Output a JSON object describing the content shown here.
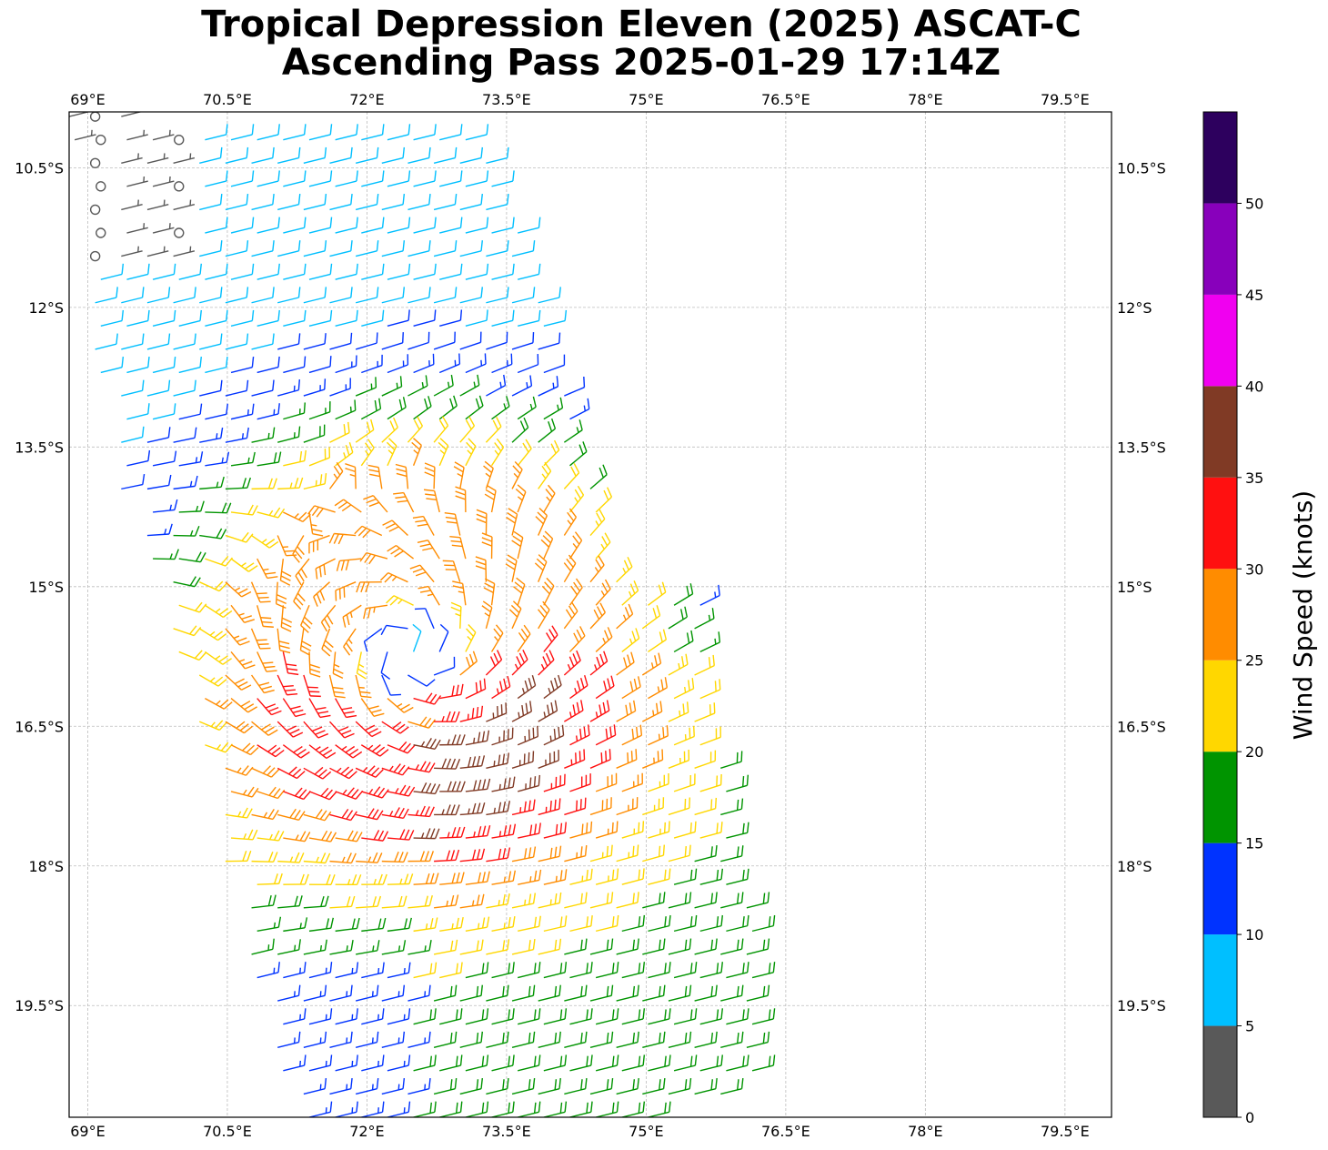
{
  "title": {
    "line1": "Tropical Depression Eleven (2025) ASCAT-C",
    "line2": "Ascending Pass 2025-01-29 17:14Z"
  },
  "chart_data": {
    "type": "wind_barb_map",
    "lon_range": [
      68.8,
      80.0
    ],
    "lat_range": [
      -9.9,
      -20.7
    ],
    "lon_ticks": [
      69,
      70.5,
      72,
      73.5,
      75,
      76.5,
      78,
      79.5
    ],
    "lon_tick_labels": [
      "69°E",
      "70.5°E",
      "72°E",
      "73.5°E",
      "75°E",
      "76.5°E",
      "78°E",
      "79.5°E"
    ],
    "lat_ticks": [
      -10.5,
      -12,
      -13.5,
      -15,
      -16.5,
      -18,
      -19.5
    ],
    "lat_tick_labels": [
      "10.5°S",
      "12°S",
      "13.5°S",
      "15°S",
      "16.5°S",
      "18°S",
      "19.5°S"
    ],
    "grid": true,
    "center": {
      "lon": 72.5,
      "lat": -15.7
    },
    "swath": {
      "top_lats": [
        -9.9,
        -10.5
      ],
      "corners": [
        [
          68.8,
          -9.9
        ],
        [
          73.3,
          -10.2
        ],
        [
          74.4,
          -13.5
        ],
        [
          74.8,
          -15.1
        ],
        [
          75.6,
          -15.2
        ],
        [
          76.4,
          -20.2
        ],
        [
          75.3,
          -20.7
        ],
        [
          71.2,
          -20.7
        ],
        [
          69.7,
          -15.0
        ],
        [
          69.2,
          -13.5
        ],
        [
          68.8,
          -10.2
        ]
      ]
    },
    "colorbar": {
      "label": "Wind Speed (knots)",
      "bounds": [
        0,
        5,
        10,
        15,
        20,
        25,
        30,
        35,
        40,
        45,
        50,
        55
      ],
      "tick_values": [
        0,
        5,
        10,
        15,
        20,
        25,
        30,
        35,
        40,
        45,
        50
      ],
      "tick_labels": [
        "0",
        "5",
        "10",
        "15",
        "20",
        "25",
        "30",
        "35",
        "40",
        "45",
        "50"
      ],
      "colors": [
        "#595959",
        "#00bfff",
        "#0033ff",
        "#009400",
        "#ffd700",
        "#ff8c00",
        "#ff1010",
        "#803a25",
        "#f000f0",
        "#8800bb",
        "#2d005e"
      ]
    }
  }
}
